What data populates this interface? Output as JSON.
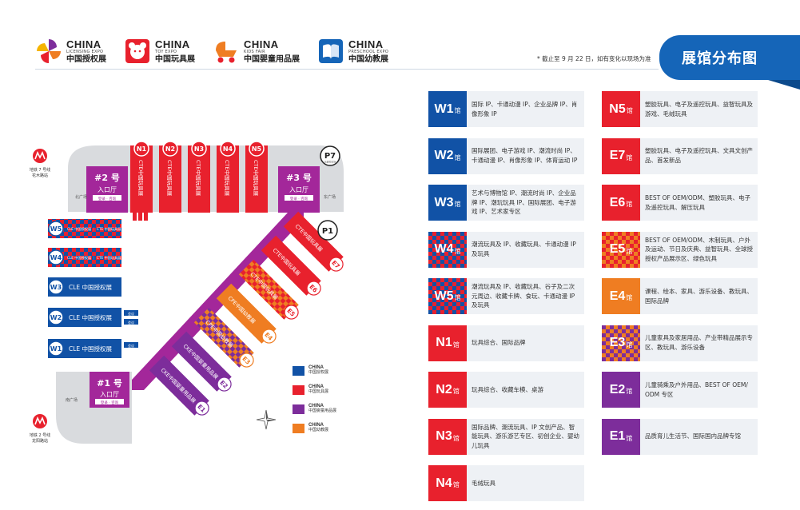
{
  "header": {
    "logos": [
      {
        "en": "CHINA",
        "sub": "LICENSING EXPO",
        "cn": "中国授权展",
        "icon": "pinwheel-icon",
        "color": "#7d2d9b"
      },
      {
        "en": "CHINA",
        "sub": "TOY EXPO",
        "cn": "中国玩具展",
        "icon": "teddy-bear-icon",
        "color": "#e8212d"
      },
      {
        "en": "CHINA",
        "sub": "KIDS FAIR",
        "cn": "中国婴童用品展",
        "icon": "stroller-icon",
        "color": "#ef7d22"
      },
      {
        "en": "CHINA",
        "sub": "PRESCHOOL EXPO",
        "cn": "中国幼教展",
        "icon": "book-icon",
        "color": "#1565b8"
      }
    ],
    "note": "* 截止至 9 月 22 日，如有变化以现场为准",
    "title": "展馆分布图"
  },
  "map": {
    "metro_top": {
      "line1": "地铁 7 号线",
      "line2": "花木路站"
    },
    "metro_bottom": {
      "line1": "地铁 2 号线",
      "line2": "龙阳路站"
    },
    "parking_p7": "P7",
    "parking_p7_sub": "长期停车场",
    "parking_p1": "P1",
    "entrance_2": {
      "line1": "#2 号",
      "line2": "入口厅",
      "badge": "登录 · 咨询"
    },
    "entrance_3": {
      "line1": "#3 号",
      "line2": "入口厅",
      "badge": "登录 · 咨询"
    },
    "entrance_1": {
      "line1": "#1 号",
      "line2": "入口厅",
      "badge": "登录 · 咨询"
    },
    "plaza_north": "北广场",
    "plaza_east": "东广场",
    "plaza_south": "南广场",
    "north_halls": [
      {
        "code": "N1",
        "label": "CTE中国玩具展"
      },
      {
        "code": "N2",
        "label": "CTE中国玩具展"
      },
      {
        "code": "N3",
        "label": "CTE中国玩具展"
      },
      {
        "code": "N4",
        "label": "CTE中国玩具展"
      },
      {
        "code": "N5",
        "label": "CTE中国玩具展"
      }
    ],
    "west_halls": [
      {
        "code": "W5",
        "label": "CLE 中国授权展 ｜ CTE 中国玩具展"
      },
      {
        "code": "W4",
        "label": "CLE 中国授权展 ｜ CTE 中国玩具展"
      },
      {
        "code": "W3",
        "label": "CLE 中国授权展"
      },
      {
        "code": "W2",
        "label": "CLE 中国授权展"
      },
      {
        "code": "W1",
        "label": "CLE 中国授权展"
      }
    ],
    "diag_halls": [
      {
        "code": "E7",
        "label": "CTE中国玩具展"
      },
      {
        "code": "E6",
        "label": "CTE中国玩具展"
      },
      {
        "code": "E5",
        "label": "CTE中国玩具展"
      },
      {
        "code": "E4",
        "label": "CPE中国幼教展"
      },
      {
        "code": "E3",
        "label": "CPE中国幼教展"
      },
      {
        "code": "E2",
        "label": "CKE中国婴童用品展"
      },
      {
        "code": "E1",
        "label": "CKE中国婴童用品展"
      }
    ],
    "small_w2": [
      "会议",
      "会议"
    ],
    "small_w1": "会议",
    "legend": [
      {
        "color": "#1152a6",
        "en": "CHINA",
        "cn": "中国授权展"
      },
      {
        "color": "#e8212d",
        "en": "CHINA",
        "cn": "中国玩具展"
      },
      {
        "color": "#7d2d9b",
        "en": "CHINA",
        "cn": "中国婴童用品展"
      },
      {
        "color": "#ef7d22",
        "en": "CHINA",
        "cn": "中国幼教展"
      }
    ]
  },
  "halls": [
    {
      "code": "W1",
      "suffix": "馆",
      "desc": "国际 IP、卡通动漫 IP、企业品牌 IP、肖像形象 IP",
      "style": "bg-blue"
    },
    {
      "code": "N5",
      "suffix": "馆",
      "desc": "塑胶玩具、电子及遥控玩具、益智玩具及游戏、毛绒玩具",
      "style": "bg-red"
    },
    {
      "code": "W2",
      "suffix": "馆",
      "desc": "国际展团、电子游戏 IP、潮流时尚 IP、卡通动漫 IP、肖像形象 IP、体育运动 IP",
      "style": "bg-blue"
    },
    {
      "code": "E7",
      "suffix": "馆",
      "desc": "塑胶玩具、电子及遥控玩具、文具文创产品、首发新品",
      "style": "bg-red"
    },
    {
      "code": "W3",
      "suffix": "馆",
      "desc": "艺术与博物馆 IP、潮流时尚 IP、企业品牌 IP、潮玩玩具 IP、国际展团、电子游戏 IP、艺术家专区",
      "style": "bg-blue"
    },
    {
      "code": "E6",
      "suffix": "馆",
      "desc": "BEST OF OEM/ODM、塑胶玩具、电子及遥控玩具、解压玩具",
      "style": "bg-red"
    },
    {
      "code": "W4",
      "suffix": "馆",
      "desc": "潮流玩具及 IP、收藏玩具、卡通动漫 IP 及玩具",
      "style": "chk-bp"
    },
    {
      "code": "E5",
      "suffix": "馆",
      "desc": "BEST OF OEM/ODM、木制玩具、户外及运动、节日及庆典、益智玩具、全球授授权产品展示区、绿色玩具",
      "style": "chk-ro"
    },
    {
      "code": "W5",
      "suffix": "馆",
      "desc": "潮流玩具及 IP、收藏玩具、谷子及二次元周边、收藏卡牌、食玩、卡通动漫 IP 及玩具",
      "style": "chk-bp"
    },
    {
      "code": "E4",
      "suffix": "馆",
      "desc": "课程、绘本、家具、游乐设备、教玩具、国际品牌",
      "style": "bg-orange"
    },
    {
      "code": "N1",
      "suffix": "馆",
      "desc": "玩具综合、国际品牌",
      "style": "bg-red"
    },
    {
      "code": "E3",
      "suffix": "馆",
      "desc": "儿童家具及家居用品、产业带精品展示专区、教玩具、游乐设备",
      "style": "chk-po"
    },
    {
      "code": "N2",
      "suffix": "馆",
      "desc": "玩具综合、收藏车模、桌游",
      "style": "bg-red"
    },
    {
      "code": "E2",
      "suffix": "馆",
      "desc": "儿童骑乘及户外用品、BEST OF OEM/ ODM 专区",
      "style": "bg-purple"
    },
    {
      "code": "N3",
      "suffix": "馆",
      "desc": "国际品牌、潮流玩具、IP 文创产品、智能玩具、游乐游艺专区、初创企业、婴幼儿玩具",
      "style": "bg-red"
    },
    {
      "code": "E1",
      "suffix": "馆",
      "desc": "品质育儿生活节、国际国内品牌专馆",
      "style": "bg-purple"
    },
    {
      "code": "N4",
      "suffix": "馆",
      "desc": "毛绒玩具",
      "style": "bg-red"
    }
  ]
}
